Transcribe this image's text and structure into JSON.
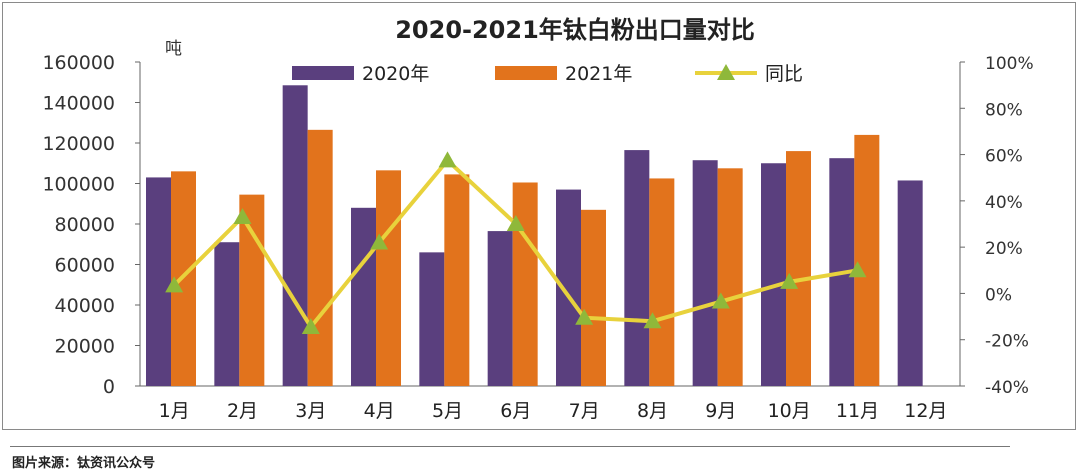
{
  "chart_data": {
    "type": "bar",
    "title": "2020-2021年钛白粉出口量对比",
    "ylabel": "吨",
    "ylim": [
      0,
      160000
    ],
    "y2lim": [
      -40,
      100
    ],
    "yticks": [
      "0",
      "20000",
      "40000",
      "60000",
      "80000",
      "100000",
      "120000",
      "140000",
      "160000"
    ],
    "y2ticks": [
      "-40%",
      "-20%",
      "0%",
      "20%",
      "40%",
      "60%",
      "80%",
      "100%"
    ],
    "categories": [
      "1月",
      "2月",
      "3月",
      "4月",
      "5月",
      "6月",
      "7月",
      "8月",
      "9月",
      "10月",
      "11月",
      "12月"
    ],
    "legend_position": "top",
    "series": [
      {
        "name": "2020年",
        "type": "bar",
        "color": "#5a3f7e",
        "values": [
          103000,
          71000,
          148500,
          88000,
          66000,
          76500,
          97000,
          116500,
          111500,
          110000,
          112500,
          101500
        ]
      },
      {
        "name": "2021年",
        "type": "bar",
        "color": "#e2731c",
        "values": [
          106000,
          94500,
          126500,
          106500,
          104500,
          100500,
          87000,
          102500,
          107500,
          116000,
          124000,
          null
        ]
      },
      {
        "name": "同比",
        "type": "line",
        "axis": "right",
        "color": "#e8d23c",
        "marker_color": "#8fb83a",
        "unit": "%",
        "values": [
          3.5,
          33,
          -14.5,
          22,
          57.5,
          30,
          -10.5,
          -12,
          -3.5,
          5,
          10,
          null
        ]
      }
    ]
  },
  "source": "图片来源：钛资讯公众号"
}
